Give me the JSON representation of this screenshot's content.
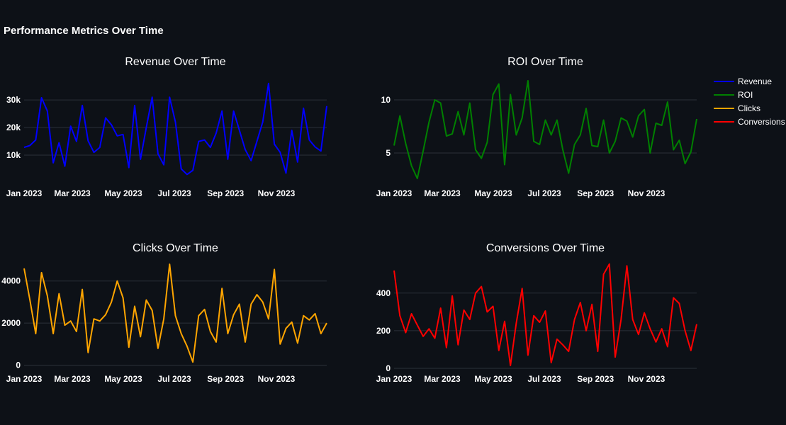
{
  "title": "Performance Metrics Over Time",
  "colors": {
    "background": "#0d1117",
    "grid": "#2b3139",
    "Revenue": "#0000ff",
    "ROI": "#008000",
    "Clicks": "#ffa500",
    "Conversions": "#ff0000"
  },
  "legend": [
    "Revenue",
    "ROI",
    "Clicks",
    "Conversions"
  ],
  "chart_data": [
    {
      "type": "line",
      "title": "Revenue Over Time",
      "series_name": "Revenue",
      "x_tick_labels": [
        "Jan 2023",
        "Mar 2023",
        "May 2023",
        "Jul 2023",
        "Sep 2023",
        "Nov 2023"
      ],
      "y_ticks": [
        10000,
        20000,
        30000
      ],
      "y_tick_labels": [
        "10k",
        "20k",
        "30k"
      ],
      "ylim": [
        0,
        38500
      ],
      "values": [
        12800,
        13500,
        15500,
        30800,
        26000,
        7200,
        14500,
        6000,
        20500,
        15000,
        28000,
        15200,
        11000,
        12800,
        23500,
        21000,
        17000,
        17500,
        5500,
        28000,
        8500,
        20000,
        31000,
        10500,
        6500,
        31000,
        22000,
        5000,
        3000,
        4500,
        15000,
        15500,
        12800,
        18000,
        26000,
        8500,
        26000,
        19000,
        12000,
        8000,
        15000,
        22000,
        36000,
        14000,
        11000,
        3500,
        19000,
        7500,
        27000,
        15500,
        13000,
        11500,
        27800
      ]
    },
    {
      "type": "line",
      "title": "ROI Over Time",
      "series_name": "ROI",
      "x_tick_labels": [
        "Jan 2023",
        "Mar 2023",
        "May 2023",
        "Jul 2023",
        "Sep 2023",
        "Nov 2023"
      ],
      "y_ticks": [
        5,
        10
      ],
      "y_tick_labels": [
        "5",
        "10"
      ],
      "ylim": [
        2.2,
        12.2
      ],
      "values": [
        5.7,
        8.5,
        5.9,
        3.8,
        2.6,
        5.2,
        7.9,
        10.0,
        9.7,
        6.6,
        6.8,
        8.9,
        6.7,
        9.7,
        5.3,
        4.5,
        6.0,
        10.5,
        11.5,
        3.9,
        10.5,
        6.7,
        8.3,
        11.8,
        6.1,
        5.8,
        8.1,
        6.7,
        8.1,
        5.3,
        3.1,
        5.8,
        6.7,
        9.2,
        5.7,
        5.6,
        8.1,
        5.0,
        6.1,
        8.3,
        8.0,
        6.5,
        8.5,
        9.1,
        5.0,
        7.8,
        7.6,
        9.8,
        5.3,
        6.2,
        4.0,
        5.1,
        8.2
      ]
    },
    {
      "type": "line",
      "title": "Clicks Over Time",
      "series_name": "Clicks",
      "x_tick_labels": [
        "Jan 2023",
        "Mar 2023",
        "May 2023",
        "Jul 2023",
        "Sep 2023",
        "Nov 2023"
      ],
      "y_ticks": [
        0,
        2000,
        4000
      ],
      "y_tick_labels": [
        "0",
        "2000",
        "4000"
      ],
      "ylim": [
        -150,
        4900
      ],
      "values": [
        4600,
        3100,
        1500,
        4400,
        3300,
        1500,
        3400,
        1900,
        2100,
        1600,
        3600,
        600,
        2200,
        2100,
        2400,
        3000,
        4000,
        3200,
        850,
        2800,
        1350,
        3100,
        2600,
        800,
        2200,
        4800,
        2350,
        1500,
        900,
        150,
        2350,
        2650,
        1600,
        1100,
        3650,
        1500,
        2400,
        2900,
        1100,
        2900,
        3350,
        3000,
        2200,
        4550,
        1000,
        1750,
        2050,
        1050,
        2350,
        2150,
        2450,
        1500,
        2000
      ]
    },
    {
      "type": "line",
      "title": "Conversions Over Time",
      "series_name": "Conversions",
      "x_tick_labels": [
        "Jan 2023",
        "Mar 2023",
        "May 2023",
        "Jul 2023",
        "Sep 2023",
        "Nov 2023"
      ],
      "y_ticks": [
        0,
        200,
        400
      ],
      "y_tick_labels": [
        "0",
        "200",
        "400"
      ],
      "ylim": [
        0,
        565
      ],
      "values": [
        520,
        280,
        190,
        290,
        230,
        170,
        210,
        160,
        320,
        110,
        385,
        125,
        310,
        260,
        400,
        435,
        300,
        330,
        95,
        250,
        15,
        240,
        425,
        70,
        280,
        245,
        305,
        30,
        155,
        125,
        90,
        260,
        350,
        200,
        340,
        90,
        500,
        555,
        60,
        260,
        545,
        260,
        180,
        295,
        210,
        140,
        210,
        115,
        375,
        345,
        200,
        95,
        235
      ]
    }
  ]
}
